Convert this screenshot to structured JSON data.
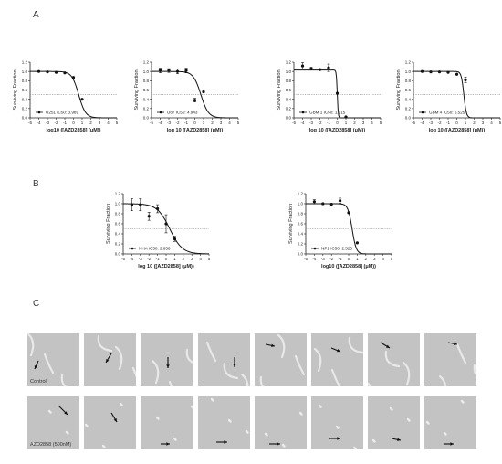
{
  "panels": {
    "a": "A",
    "b": "B",
    "c": "C"
  },
  "axis_common": {
    "ylabel": "Surviving Fraction",
    "xticks": [
      "-5",
      "-4",
      "-3",
      "-2",
      "-1",
      "0",
      "1",
      "2",
      "3",
      "4",
      "5"
    ],
    "yticks": [
      "0.0",
      "0.2",
      "0.4",
      "0.6",
      "0.8",
      "1.0",
      "1.2"
    ]
  },
  "chart_data": [
    {
      "type": "scatter",
      "panel": "A",
      "legend": "U251 IC50: 3.989",
      "xlabel": "log10 ([AZD2858] (μM))",
      "xlim": [
        -5,
        5
      ],
      "ylim": [
        0,
        1.2
      ],
      "reference_line": 0.5,
      "points": [
        {
          "x": -4,
          "y": 1.0
        },
        {
          "x": -3,
          "y": 0.99
        },
        {
          "x": -2,
          "y": 0.98
        },
        {
          "x": -1,
          "y": 0.97
        },
        {
          "x": 0,
          "y": 0.87
        },
        {
          "x": 1,
          "y": 0.4
        }
      ],
      "fit": {
        "top": 1.0,
        "log_ic50": 0.6,
        "hill": 1.1
      }
    },
    {
      "type": "scatter",
      "panel": "A",
      "legend": "U87 IC50: 4.943",
      "xlabel": "log 10 ([AZD2858] (μM))",
      "xlim": [
        -5,
        5
      ],
      "ylim": [
        0,
        1.2
      ],
      "reference_line": 0.5,
      "points": [
        {
          "x": -4,
          "y": 1.02,
          "err": 0.05
        },
        {
          "x": -3,
          "y": 1.02,
          "err": 0.04
        },
        {
          "x": -2,
          "y": 1.0,
          "err": 0.05
        },
        {
          "x": -1,
          "y": 1.02,
          "err": 0.05
        },
        {
          "x": 0,
          "y": 0.38,
          "err": 0.04
        },
        {
          "x": 1,
          "y": 0.56
        }
      ],
      "fit": {
        "top": 1.0,
        "log_ic50": 0.69,
        "hill": 1.0
      }
    },
    {
      "type": "scatter",
      "panel": "A",
      "legend": "GBM 1 IC50: 1.015",
      "xlabel": "log 10 ([AZD2858] (μM))",
      "xlim": [
        -5,
        5
      ],
      "ylim": [
        0,
        1.2
      ],
      "reference_line": 0.5,
      "points": [
        {
          "x": -4,
          "y": 1.12,
          "err": 0.07
        },
        {
          "x": -3,
          "y": 1.06,
          "err": 0.03
        },
        {
          "x": -2,
          "y": 1.04
        },
        {
          "x": -1,
          "y": 1.08,
          "err": 0.08
        },
        {
          "x": 0,
          "y": 0.53
        },
        {
          "x": 1,
          "y": 0.02
        }
      ],
      "fit": {
        "top": 1.03,
        "log_ic50": 0.006,
        "hill": 8
      }
    },
    {
      "type": "scatter",
      "panel": "A",
      "legend": "GBM 4 IC50: 6.525",
      "xlabel": "log 10 ([AZD2858] (μM))",
      "xlim": [
        -5,
        5
      ],
      "ylim": [
        0,
        1.2
      ],
      "reference_line": 0.5,
      "points": [
        {
          "x": -4,
          "y": 1.0
        },
        {
          "x": -3,
          "y": 0.99
        },
        {
          "x": -2,
          "y": 0.99
        },
        {
          "x": -1,
          "y": 0.98
        },
        {
          "x": 0,
          "y": 0.94
        },
        {
          "x": 1,
          "y": 0.82,
          "err": 0.06
        }
      ],
      "fit": {
        "top": 1.0,
        "log_ic50": 0.81,
        "hill": 3
      }
    },
    {
      "type": "scatter",
      "panel": "B",
      "legend": "NHA IC50: 2.636",
      "xlabel": "log 10 ([AZD2858] (μM))",
      "xlim": [
        -5,
        5
      ],
      "ylim": [
        0,
        1.2
      ],
      "reference_line": 0.5,
      "points": [
        {
          "x": -4,
          "y": 0.98,
          "err": 0.12
        },
        {
          "x": -3,
          "y": 0.98,
          "err": 0.12
        },
        {
          "x": -2,
          "y": 0.75,
          "err": 0.08
        },
        {
          "x": -1,
          "y": 0.9,
          "err": 0.08
        },
        {
          "x": 0,
          "y": 0.6,
          "err": 0.18
        },
        {
          "x": 1,
          "y": 0.3,
          "err": 0.05
        }
      ],
      "fit": {
        "top": 1.0,
        "log_ic50": 0.42,
        "hill": 0.6
      }
    },
    {
      "type": "scatter",
      "panel": "B",
      "legend": "NP1 IC50: 2.523",
      "xlabel": "log10 ([AZD2858] (μM))",
      "xlim": [
        -5,
        5
      ],
      "ylim": [
        0,
        1.2
      ],
      "reference_line": 0.5,
      "points": [
        {
          "x": -4,
          "y": 1.04,
          "err": 0.04
        },
        {
          "x": -3,
          "y": 1.0
        },
        {
          "x": -2,
          "y": 0.99
        },
        {
          "x": -1,
          "y": 1.06,
          "err": 0.05
        },
        {
          "x": 0,
          "y": 0.82
        },
        {
          "x": 1,
          "y": 0.22
        }
      ],
      "fit": {
        "top": 1.0,
        "log_ic50": 0.4,
        "hill": 1.8
      }
    }
  ],
  "micrographs": {
    "rows": [
      {
        "label": "Control",
        "arrows": [
          [
            12,
            30,
            8,
            39
          ],
          [
            30,
            22,
            24,
            32
          ],
          [
            30,
            26,
            30,
            38
          ],
          [
            40,
            26,
            40,
            37
          ],
          [
            12,
            12,
            22,
            14
          ],
          [
            22,
            16,
            32,
            20
          ],
          [
            14,
            10,
            24,
            16
          ],
          [
            26,
            10,
            36,
            12
          ]
        ]
      },
      {
        "label": "AZD2858 (500nM)",
        "arrows": [
          [
            34,
            10,
            44,
            20
          ],
          [
            30,
            18,
            36,
            28
          ],
          [
            22,
            52,
            32,
            52
          ],
          [
            20,
            50,
            32,
            50
          ],
          [
            16,
            52,
            28,
            52
          ],
          [
            20,
            46,
            32,
            46
          ],
          [
            26,
            46,
            36,
            48
          ],
          [
            22,
            52,
            32,
            52
          ]
        ]
      }
    ]
  }
}
